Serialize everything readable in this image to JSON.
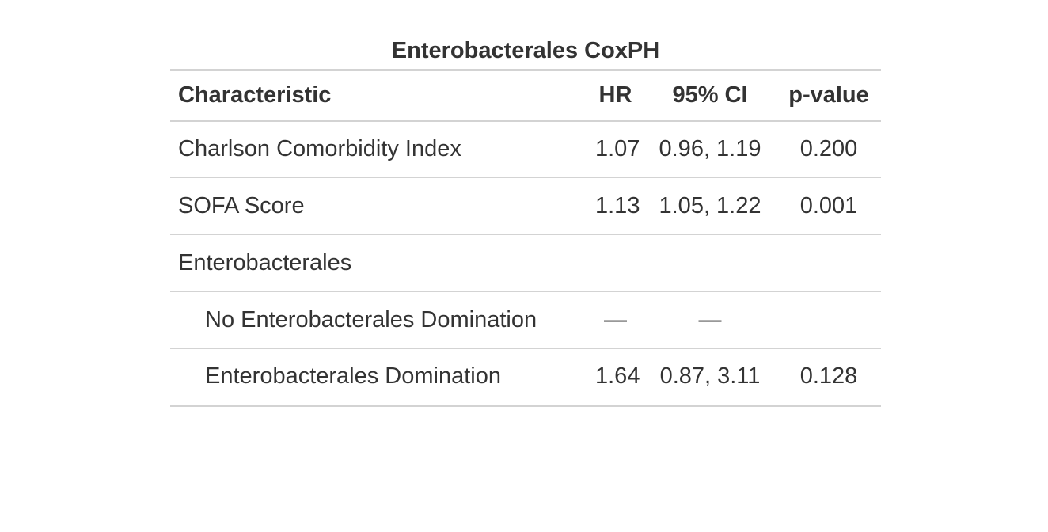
{
  "table": {
    "title": "Enterobacterales CoxPH",
    "headers": {
      "characteristic": "Characteristic",
      "hr": "HR",
      "ci": "95% CI",
      "p": "p-value"
    },
    "rows": [
      {
        "label": "Charlson Comorbidity Index",
        "hr": "1.07",
        "ci": "0.96, 1.19",
        "p": "0.200"
      },
      {
        "label": "SOFA Score",
        "hr": "1.13",
        "ci": "1.05, 1.22",
        "p": "0.001"
      },
      {
        "label": "Enterobacterales",
        "hr": "",
        "ci": "",
        "p": ""
      },
      {
        "label": "No Enterobacterales Domination",
        "hr": "—",
        "ci": "—",
        "p": ""
      },
      {
        "label": "Enterobacterales Domination",
        "hr": "1.64",
        "ci": "0.87, 3.11",
        "p": "0.128"
      }
    ]
  }
}
